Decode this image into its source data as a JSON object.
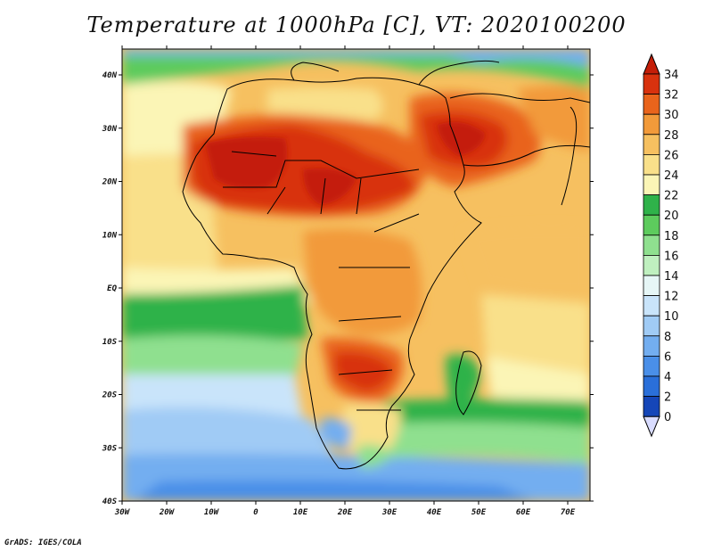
{
  "title": "Temperature at 1000hPa [C], VT: 2020100200",
  "credit": "GrADS: IGES/COLA",
  "map": {
    "lon_range": [
      -30,
      75
    ],
    "lat_range": [
      -40,
      45
    ],
    "lon_ticks": [
      "30W",
      "20W",
      "10W",
      "0",
      "10E",
      "20E",
      "30E",
      "40E",
      "50E",
      "60E",
      "70E"
    ],
    "lat_ticks": [
      "40N",
      "30N",
      "20N",
      "10N",
      "EQ",
      "10S",
      "20S",
      "30S",
      "40S"
    ]
  },
  "colorbar": {
    "levels": [
      "0",
      "2",
      "4",
      "6",
      "8",
      "10",
      "12",
      "14",
      "16",
      "18",
      "20",
      "22",
      "24",
      "26",
      "28",
      "30",
      "32",
      "34"
    ],
    "colors": [
      "#0a1f7a",
      "#1546b8",
      "#2a6fd9",
      "#4a8fe8",
      "#73aef0",
      "#a0cbf5",
      "#c9e4fa",
      "#e6f6f6",
      "#bff0bf",
      "#8fe08f",
      "#5dcb5d",
      "#2fb24a",
      "#fbf5b6",
      "#f9e08a",
      "#f6c060",
      "#f29a3a",
      "#e9641c",
      "#d8320e",
      "#c41e08"
    ],
    "under_color": "#d9dcff"
  }
}
